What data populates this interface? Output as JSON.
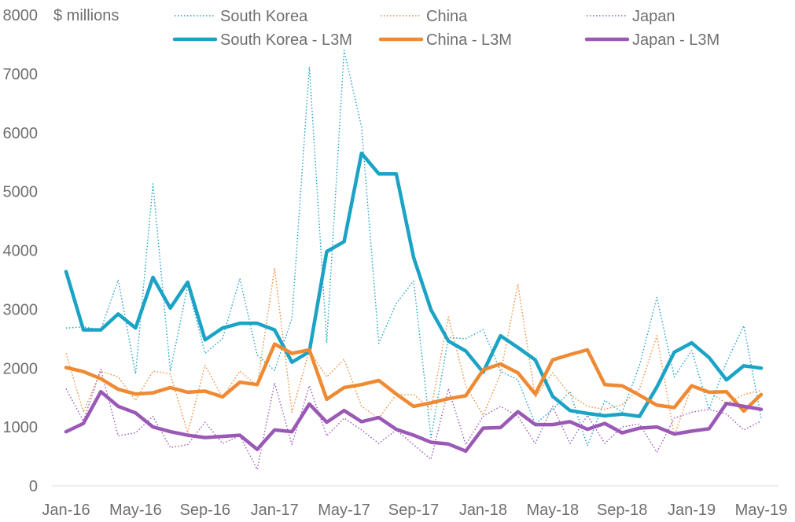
{
  "chart_data": {
    "type": "line",
    "unit_label": "$ millions",
    "ylim": [
      0,
      8000
    ],
    "y_ticks": [
      0,
      1000,
      2000,
      3000,
      4000,
      5000,
      6000,
      7000,
      8000
    ],
    "x": [
      "Jan-16",
      "Feb-16",
      "Mar-16",
      "Apr-16",
      "May-16",
      "Jun-16",
      "Jul-16",
      "Aug-16",
      "Sep-16",
      "Oct-16",
      "Nov-16",
      "Dec-16",
      "Jan-17",
      "Feb-17",
      "Mar-17",
      "Apr-17",
      "May-17",
      "Jun-17",
      "Jul-17",
      "Aug-17",
      "Sep-17",
      "Oct-17",
      "Nov-17",
      "Dec-17",
      "Jan-18",
      "Feb-18",
      "Mar-18",
      "Apr-18",
      "May-18",
      "Jun-18",
      "Jul-18",
      "Aug-18",
      "Sep-18",
      "Oct-18",
      "Nov-18",
      "Dec-18",
      "Jan-19",
      "Feb-19",
      "Mar-19",
      "Apr-19",
      "May-19"
    ],
    "x_tick_labels": [
      "Jan-16",
      "May-16",
      "Sep-16",
      "Jan-17",
      "May-17",
      "Sep-17",
      "Jan-18",
      "May-18",
      "Sep-18",
      "Jan-19",
      "May-19"
    ],
    "grid": false,
    "legend_position": "top",
    "series": [
      {
        "name": "South Korea",
        "style": "dotted",
        "color": "#1ba3c6",
        "values": [
          2680,
          2700,
          2650,
          3500,
          1900,
          5130,
          1950,
          3400,
          2250,
          2500,
          3520,
          2220,
          1960,
          2850,
          7120,
          2430,
          7400,
          6100,
          2420,
          3100,
          3480,
          820,
          2520,
          2500,
          2650,
          1950,
          1800,
          1050,
          1300,
          1600,
          680,
          1450,
          1250,
          2050,
          3200,
          1850,
          2300,
          1300,
          2100,
          2720,
          1150
        ]
      },
      {
        "name": "China",
        "style": "dotted",
        "color": "#ef8a33",
        "values": [
          2250,
          1250,
          1950,
          1850,
          1450,
          1950,
          1900,
          900,
          2050,
          1500,
          1950,
          1700,
          3700,
          1250,
          2300,
          1850,
          2150,
          1350,
          1150,
          1550,
          1550,
          1300,
          2870,
          1700,
          1200,
          1900,
          3430,
          1500,
          1920,
          1550,
          1350,
          1300,
          1380,
          1650,
          2550,
          850,
          1700,
          1600,
          1400,
          1550,
          1620
        ]
      },
      {
        "name": "Japan",
        "style": "dotted",
        "color": "#9b59b6",
        "values": [
          1650,
          1100,
          1980,
          850,
          900,
          1180,
          650,
          700,
          1080,
          720,
          850,
          280,
          1750,
          700,
          1700,
          850,
          1150,
          950,
          720,
          950,
          700,
          450,
          1650,
          700,
          1180,
          1350,
          1180,
          720,
          1350,
          720,
          1200,
          720,
          1000,
          1050,
          570,
          1150,
          1250,
          1300,
          1220,
          950,
          1100
        ]
      },
      {
        "name": "South Korea - L3M",
        "style": "solid",
        "color": "#1ba3c6",
        "values": [
          3640,
          2650,
          2650,
          2920,
          2680,
          3540,
          3020,
          3460,
          2480,
          2680,
          2760,
          2760,
          2650,
          2100,
          2280,
          3980,
          4150,
          5650,
          5300,
          5300,
          3880,
          2990,
          2460,
          2290,
          1930,
          2550,
          2350,
          2140,
          1520,
          1280,
          1230,
          1190,
          1220,
          1180,
          1680,
          2270,
          2430,
          2180,
          1800,
          2040,
          2000
        ]
      },
      {
        "name": "China - L3M",
        "style": "solid",
        "color": "#ef8a33",
        "values": [
          2010,
          1940,
          1820,
          1640,
          1560,
          1580,
          1670,
          1590,
          1610,
          1510,
          1760,
          1720,
          2410,
          2250,
          2310,
          1470,
          1670,
          1720,
          1790,
          1560,
          1350,
          1410,
          1480,
          1530,
          1970,
          2070,
          1920,
          1560,
          2140,
          2230,
          2310,
          1720,
          1700,
          1540,
          1370,
          1330,
          1700,
          1590,
          1600,
          1270,
          1550
        ]
      },
      {
        "name": "Japan - L3M",
        "style": "solid",
        "color": "#9b59b6",
        "values": [
          920,
          1060,
          1600,
          1350,
          1240,
          1000,
          920,
          860,
          820,
          840,
          860,
          620,
          950,
          920,
          1390,
          1080,
          1280,
          1090,
          1160,
          960,
          860,
          740,
          710,
          590,
          980,
          990,
          1260,
          1040,
          1040,
          1090,
          960,
          1060,
          900,
          980,
          1000,
          880,
          930,
          970,
          1400,
          1350,
          1300
        ]
      }
    ]
  }
}
